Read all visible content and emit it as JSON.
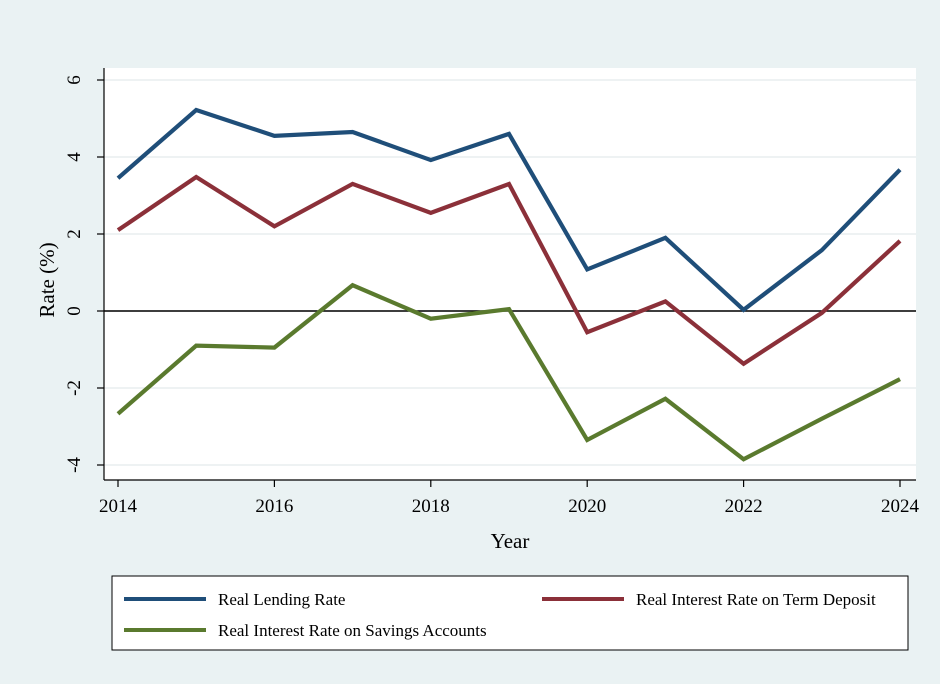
{
  "chart_data": {
    "type": "line",
    "xlabel": "Year",
    "ylabel": "Rate (%)",
    "xlim": [
      2014,
      2024
    ],
    "ylim": [
      -4,
      6
    ],
    "x_ticks": [
      2014,
      2016,
      2018,
      2020,
      2022,
      2024
    ],
    "y_ticks": [
      -4,
      -2,
      0,
      2,
      4,
      6
    ],
    "zero_line": true,
    "grid": "horizontal",
    "legend_position": "bottom",
    "x": [
      2014,
      2015,
      2016,
      2017,
      2018,
      2019,
      2020,
      2021,
      2022,
      2023,
      2024
    ],
    "series": [
      {
        "name": "Real Lending Rate",
        "color": "#1f4e79",
        "values": [
          3.45,
          5.22,
          4.55,
          4.65,
          3.92,
          4.6,
          1.08,
          1.9,
          0.03,
          1.58,
          3.67
        ]
      },
      {
        "name": "Real Interest Rate on Term Deposit",
        "color": "#8b3039",
        "values": [
          2.1,
          3.48,
          2.2,
          3.3,
          2.55,
          3.3,
          -0.55,
          0.25,
          -1.37,
          -0.05,
          1.82
        ]
      },
      {
        "name": "Real Interest Rate on Savings Accounts",
        "color": "#5a7a2e",
        "values": [
          -2.67,
          -0.9,
          -0.95,
          0.67,
          -0.2,
          0.05,
          -3.35,
          -2.28,
          -3.85,
          -2.8,
          -1.77
        ]
      }
    ]
  }
}
